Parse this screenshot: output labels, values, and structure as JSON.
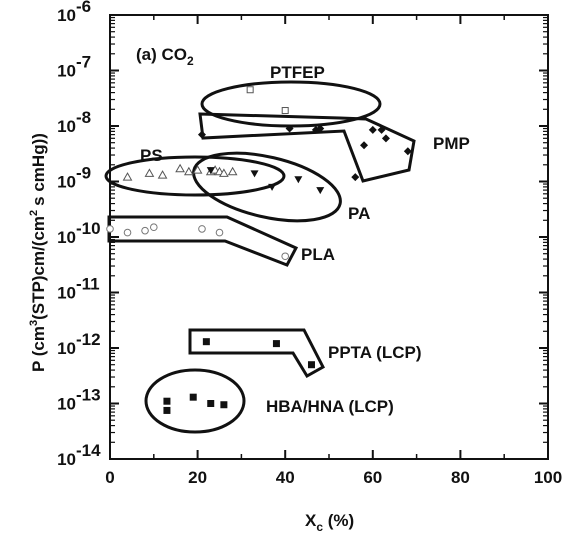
{
  "chart_data": {
    "type": "scatter",
    "panel_label": "(a) CO",
    "panel_label_sub": "2",
    "xlabel": "X",
    "xlabel_sub": "c",
    "xlabel_unit": " (%)",
    "ylabel_parts": [
      "P (cm",
      "3",
      "(STP)cm/(cm",
      "2",
      "s cmHg))"
    ],
    "x_axis": {
      "min": 0,
      "max": 100,
      "ticks": [
        0,
        20,
        40,
        60,
        80,
        100
      ],
      "tick_labels": [
        "0",
        "20",
        "40",
        "60",
        "80",
        "100"
      ]
    },
    "y_axis": {
      "scale": "log",
      "min": 1e-14,
      "max": 1e-06,
      "ticks": [
        1e-14,
        1e-13,
        1e-12,
        1e-11,
        1e-10,
        1e-09,
        1e-08,
        1e-07,
        1e-06
      ],
      "tick_exponents": [
        "-14",
        "-13",
        "-12",
        "-11",
        "-10",
        "-9",
        "-8",
        "-7",
        "-6"
      ],
      "tick_base": "10"
    },
    "grid": false,
    "legend": "none",
    "series": [
      {
        "name": "PTFEP",
        "marker": "open-square",
        "x": [
          32,
          40
        ],
        "y": [
          4.5e-08,
          1.9e-08
        ]
      },
      {
        "name": "PMP",
        "marker": "filled-diamond",
        "x": [
          21,
          41,
          47,
          48,
          56,
          58,
          60,
          62,
          63,
          68
        ],
        "y": [
          7e-09,
          9e-09,
          8.5e-09,
          9e-09,
          1.2e-09,
          4.5e-09,
          8.5e-09,
          8.5e-09,
          6e-09,
          3.5e-09
        ]
      },
      {
        "name": "PS",
        "marker": "open-triangle",
        "x": [
          4,
          9,
          12,
          16,
          18,
          20,
          23,
          24,
          25,
          26,
          28
        ],
        "y": [
          1.2e-09,
          1.4e-09,
          1.3e-09,
          1.7e-09,
          1.5e-09,
          1.6e-09,
          1.5e-09,
          1.6e-09,
          1.5e-09,
          1.4e-09,
          1.5e-09
        ]
      },
      {
        "name": "PA",
        "marker": "filled-triangle-down",
        "x": [
          23,
          33,
          37,
          43,
          48
        ],
        "y": [
          1.6e-09,
          1.4e-09,
          8e-10,
          1.1e-09,
          7e-10
        ]
      },
      {
        "name": "PLA",
        "marker": "open-circle",
        "x": [
          0,
          4,
          8,
          10,
          21,
          25,
          40
        ],
        "y": [
          1.4e-10,
          1.2e-10,
          1.3e-10,
          1.5e-10,
          1.4e-10,
          1.2e-10,
          4.5e-11
        ]
      },
      {
        "name": "PPTA (LCP)",
        "marker": "filled-square",
        "x": [
          22,
          38,
          46
        ],
        "y": [
          1.3e-12,
          1.2e-12,
          5e-13
        ]
      },
      {
        "name": "HBA/HNA (LCP)",
        "marker": "filled-square",
        "x": [
          13,
          13,
          19,
          23,
          26
        ],
        "y": [
          1.1e-13,
          7.5e-14,
          1.3e-13,
          1e-13,
          9.5e-14
        ]
      }
    ],
    "labels": {
      "PTFEP": "PTFEP",
      "PMP": "PMP",
      "PS": "PS",
      "PA": "PA",
      "PLA": "PLA",
      "PPTA": "PPTA (LCP)",
      "HBA": "HBA/HNA (LCP)"
    }
  }
}
